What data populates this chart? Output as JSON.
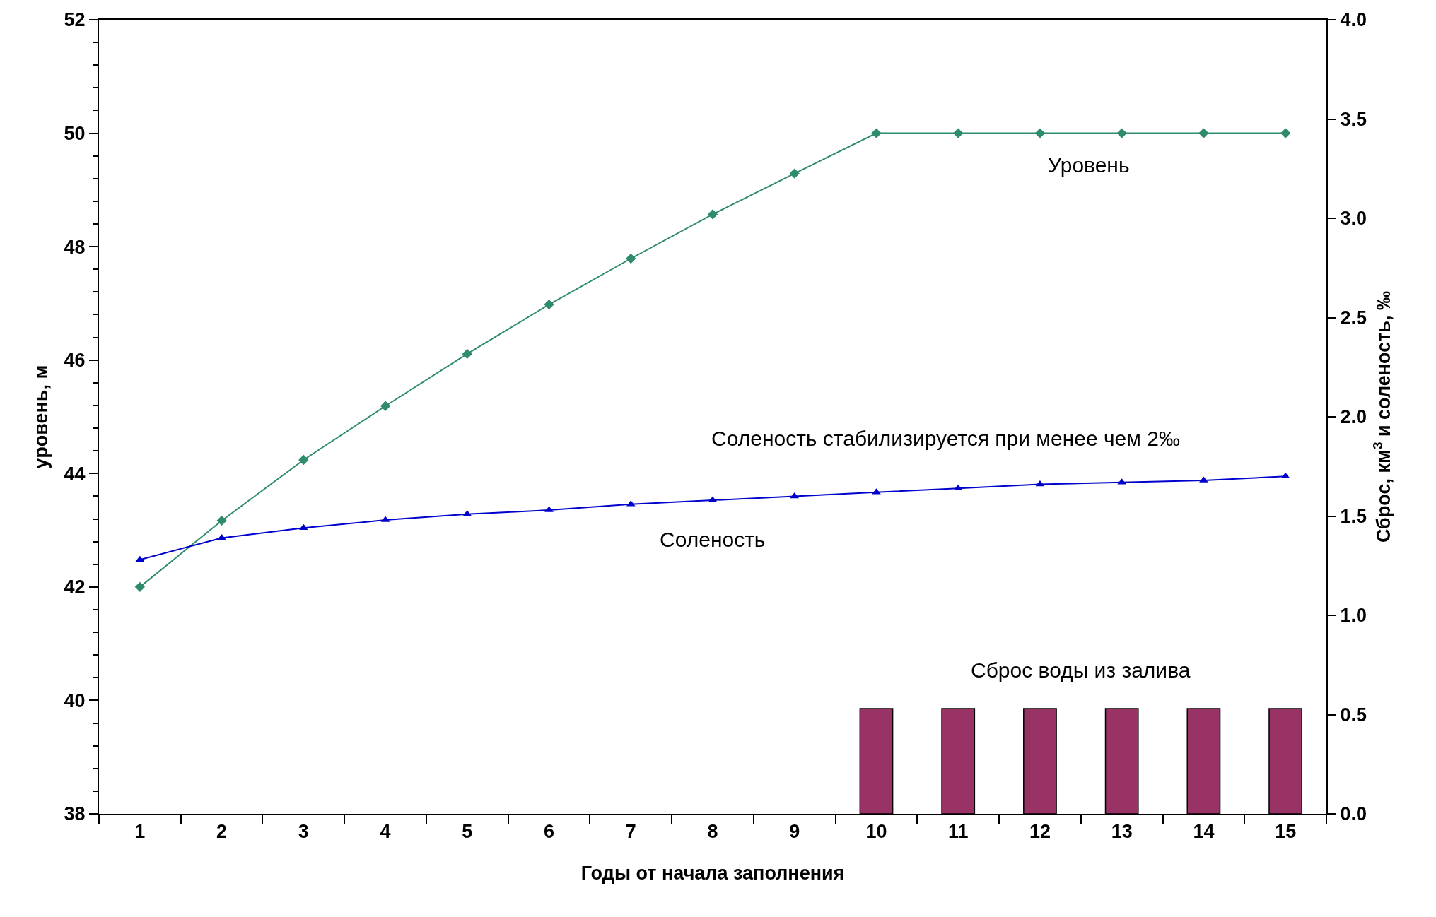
{
  "chart_data": {
    "type": "line",
    "xlabel": "Годы от начала заполнения",
    "ylabel": "уровень, м",
    "y2label": "Сброс, км$^{3}$ и соленость, ‰",
    "x": [
      1,
      2,
      3,
      4,
      5,
      6,
      7,
      8,
      9,
      10,
      11,
      12,
      13,
      14,
      15
    ],
    "xlim": [
      0.5,
      15.5
    ],
    "xticks": [
      1,
      2,
      3,
      4,
      5,
      6,
      7,
      8,
      9,
      10,
      11,
      12,
      13,
      14,
      15
    ],
    "ylim": [
      38,
      52
    ],
    "yticks": [
      38,
      40,
      42,
      44,
      46,
      48,
      50,
      52
    ],
    "y2lim": [
      0,
      4
    ],
    "y2ticks": [
      {
        "value": 0,
        "label": "0.0"
      },
      {
        "value": 0.5,
        "label": "0.5"
      },
      {
        "value": 1,
        "label": "1.0"
      },
      {
        "value": 1.5,
        "label": "1.5"
      },
      {
        "value": 2,
        "label": "2.0"
      },
      {
        "value": 2.5,
        "label": "2.5"
      },
      {
        "value": 3,
        "label": "3.0"
      },
      {
        "value": 3.5,
        "label": "3.5"
      },
      {
        "value": 4,
        "label": "4.0"
      }
    ],
    "series": [
      {
        "type": "bar",
        "axis": "y2",
        "name": "Сброс воды из залива",
        "color": "#993366",
        "values": [
          null,
          null,
          null,
          null,
          null,
          null,
          null,
          null,
          null,
          0.53,
          0.53,
          0.53,
          0.53,
          0.53,
          0.53
        ]
      },
      {
        "name": "Уровень",
        "color": "#2e8b6e",
        "marker": "diamond",
        "values": [
          42.0,
          43.17,
          44.24,
          45.19,
          46.11,
          46.98,
          47.79,
          48.57,
          49.29,
          50,
          50,
          50,
          50,
          50,
          50
        ]
      },
      {
        "axis": "y2",
        "name": "Соленость",
        "color": "#0000cc",
        "marker": "triangle",
        "values": [
          1.28,
          1.39,
          1.44,
          1.48,
          1.51,
          1.53,
          1.56,
          1.58,
          1.6,
          1.62,
          1.64,
          1.66,
          1.67,
          1.68,
          1.7
        ]
      }
    ],
    "line_style": "solid",
    "grid": false,
    "legend": false,
    "annotations": [
      "Соленость стабилизируется при менее чем 2‰"
    ]
  }
}
